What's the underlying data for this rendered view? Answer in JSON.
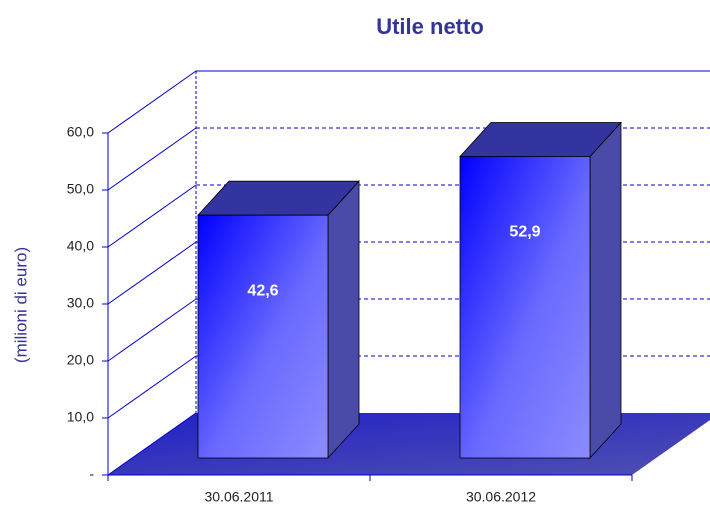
{
  "chart_data": {
    "type": "bar3d",
    "title": "Utile netto",
    "y_axis_label": "(milioni di euro)",
    "categories": [
      "30.06.2011",
      "30.06.2012"
    ],
    "values": [
      42.6,
      52.9
    ],
    "value_labels": [
      "42,6",
      "52,9"
    ],
    "ylim": [
      0,
      60
    ],
    "yticks": [
      {
        "value": 0,
        "label": "-"
      },
      {
        "value": 10,
        "label": "10,0"
      },
      {
        "value": 20,
        "label": "20,0"
      },
      {
        "value": 30,
        "label": "30,0"
      },
      {
        "value": 40,
        "label": "40,0"
      },
      {
        "value": 50,
        "label": "50,0"
      },
      {
        "value": 60,
        "label": "60,0"
      }
    ],
    "color": "#5b5bff",
    "grid": true
  }
}
